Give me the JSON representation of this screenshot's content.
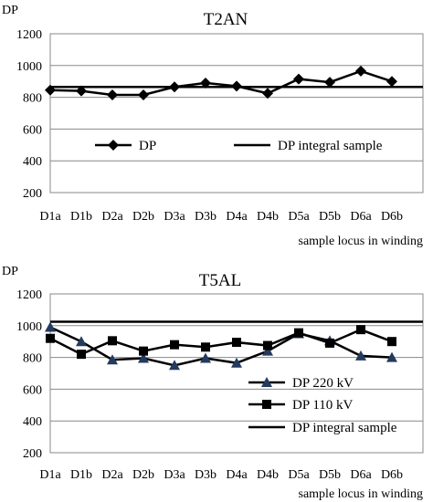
{
  "chart_data": [
    {
      "type": "line",
      "title": "T2AN",
      "ylabel": "DP",
      "xlabel": "sample locus in winding",
      "categories": [
        "D1a",
        "D1b",
        "D2a",
        "D2b",
        "D3a",
        "D3b",
        "D4a",
        "D4b",
        "D5a",
        "D5b",
        "D6a",
        "D6b"
      ],
      "ylim": [
        200,
        1200
      ],
      "yticks": [
        200,
        400,
        600,
        800,
        1000,
        1200
      ],
      "series": [
        {
          "name": "DP",
          "marker": "diamond",
          "values": [
            845,
            840,
            815,
            815,
            865,
            890,
            870,
            825,
            915,
            895,
            965,
            900
          ]
        }
      ],
      "reference_lines": [
        {
          "name": "DP integral sample",
          "value": 865
        }
      ],
      "grid": "horizontal",
      "legend": "middle"
    },
    {
      "type": "line",
      "title": "T5AL",
      "ylabel": "DP",
      "xlabel": "sample locus in winding",
      "categories": [
        "D1a",
        "D1b",
        "D2a",
        "D2b",
        "D3a",
        "D3b",
        "D4a",
        "D4b",
        "D5a",
        "D5b",
        "D6a",
        "D6b"
      ],
      "ylim": [
        200,
        1200
      ],
      "yticks": [
        200,
        400,
        600,
        800,
        1000,
        1200
      ],
      "series": [
        {
          "name": "DP 220 kV",
          "marker": "triangle",
          "color": "#243a5e",
          "values": [
            990,
            900,
            785,
            795,
            750,
            795,
            765,
            840,
            950,
            905,
            810,
            800
          ]
        },
        {
          "name": "DP 110 kV",
          "marker": "square",
          "color": "#000000",
          "values": [
            920,
            820,
            905,
            840,
            880,
            865,
            895,
            875,
            955,
            890,
            975,
            900
          ]
        }
      ],
      "reference_lines": [
        {
          "name": "DP integral sample",
          "value": 1025
        }
      ],
      "grid": "horizontal",
      "legend": "bottom-right"
    }
  ]
}
